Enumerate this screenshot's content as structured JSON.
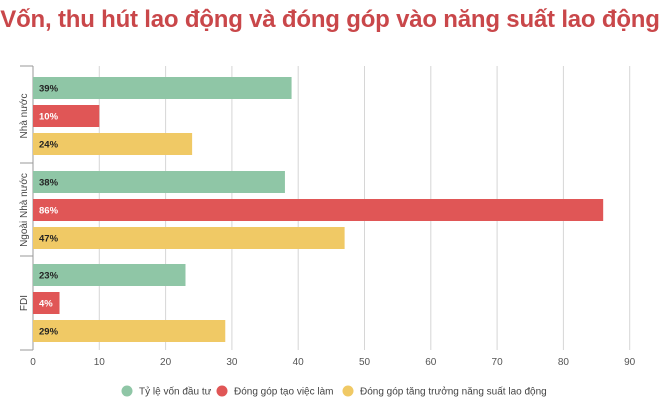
{
  "chart_data": {
    "type": "bar",
    "orientation": "horizontal",
    "title": "Vốn, thu hút lao động và đóng góp vào năng suất lao động",
    "categories": [
      "Nhà nước",
      "Ngoài Nhà nước",
      "FDI"
    ],
    "series": [
      {
        "name": "Tỷ lệ vốn đầu tư",
        "color": "#8fc6a6",
        "values": [
          39,
          38,
          23
        ],
        "labels": [
          "39%",
          "38%",
          "23%"
        ]
      },
      {
        "name": "Đóng góp tạo việc làm",
        "color": "#e05656",
        "values": [
          10,
          86,
          4
        ],
        "labels": [
          "10%",
          "86%",
          "4%"
        ]
      },
      {
        "name": "Đóng góp tăng trưởng năng suất lao động",
        "color": "#f0c965",
        "values": [
          24,
          47,
          29
        ],
        "labels": [
          "24%",
          "47%",
          "29%"
        ]
      }
    ],
    "xlim": [
      0,
      90
    ],
    "xticks": [
      0,
      10,
      20,
      30,
      40,
      50,
      60,
      70,
      80,
      90
    ],
    "xtick_labels": [
      "0",
      "10",
      "20",
      "30",
      "40",
      "50",
      "60",
      "70",
      "80",
      "90"
    ],
    "grid": true,
    "legend_position": "bottom"
  }
}
